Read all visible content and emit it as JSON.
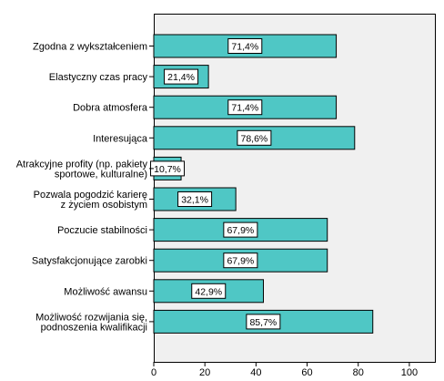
{
  "chart_data": {
    "type": "bar",
    "orientation": "horizontal",
    "categories": [
      "Zgodna z wykształceniem",
      "Elastyczny czas pracy",
      "Dobra atmosfera",
      "Interesująca",
      "Atrakcyjne profity (np. pakiety sportowe, kulturalne)",
      "Pozwala pogodzić karierę z życiem osobistym",
      "Poczucie stabilności",
      "Satysfakcjonujące zarobki",
      "Możliwość awansu",
      "Możliwość rozwijania się, podnoszenia kwalifikacji"
    ],
    "category_lines": [
      [
        "Zgodna z wykształceniem"
      ],
      [
        "Elastyczny czas pracy"
      ],
      [
        "Dobra atmosfera"
      ],
      [
        "Interesująca"
      ],
      [
        "Atrakcyjne profity (np. pakiety",
        "sportowe, kulturalne)"
      ],
      [
        "Pozwala pogodzić karierę",
        "z życiem osobistym"
      ],
      [
        "Poczucie stabilności"
      ],
      [
        "Satysfakcjonujące zarobki"
      ],
      [
        "Możliwość awansu"
      ],
      [
        "Możliwość rozwijania się,",
        "podnoszenia kwalifikacji"
      ]
    ],
    "values": [
      71.4,
      21.4,
      71.4,
      78.6,
      10.7,
      32.1,
      67.9,
      67.9,
      42.9,
      85.7
    ],
    "data_labels": [
      "71,4%",
      "21,4%",
      "71,4%",
      "78,6%",
      "10,7%",
      "32,1%",
      "67,9%",
      "67,9%",
      "42,9%",
      "85,7%"
    ],
    "x_ticks": [
      0,
      20,
      40,
      60,
      80,
      100
    ],
    "xlim": [
      0,
      110
    ],
    "title": "",
    "xlabel": "",
    "ylabel": "",
    "grid": false,
    "colors": {
      "bar": "#4fc7c5",
      "bar_stroke": "#000000",
      "plot_background": "#f0f0f0",
      "plot_border": "#000000",
      "label_box": "#ffffff"
    }
  }
}
